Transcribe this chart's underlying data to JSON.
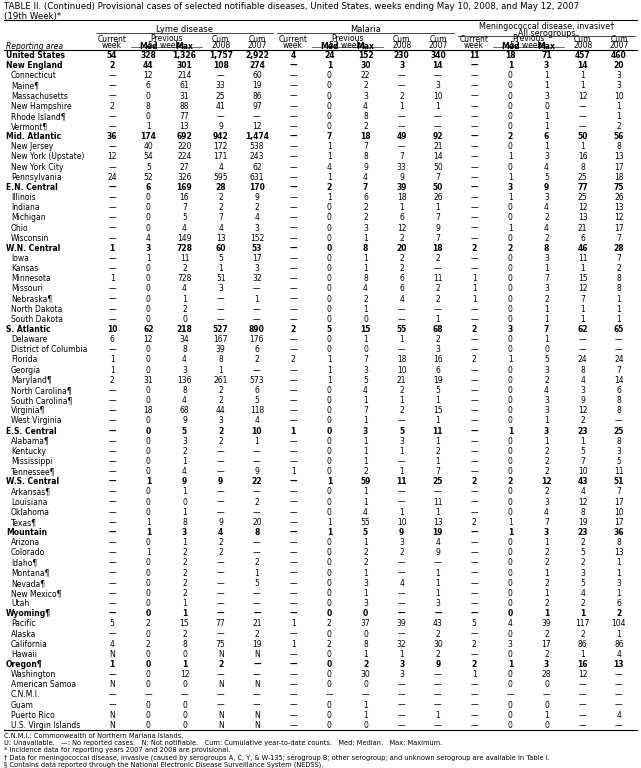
{
  "title_line1": "TABLE II. (Continued) Provisional cases of selected notifiable diseases, United States, weeks ending May 10, 2008, and May 12, 2007",
  "title_line2": "(19th Week)*",
  "rows": [
    [
      "United States",
      "54",
      "328",
      "1,326",
      "1,757",
      "2,922",
      "4",
      "24",
      "152",
      "230",
      "340",
      "11",
      "18",
      "71",
      "457",
      "460"
    ],
    [
      "New England",
      "2",
      "44",
      "301",
      "108",
      "274",
      "—",
      "1",
      "30",
      "3",
      "14",
      "—",
      "1",
      "3",
      "14",
      "20"
    ],
    [
      "Connecticut",
      "—",
      "12",
      "214",
      "—",
      "60",
      "—",
      "0",
      "22",
      "—",
      "—",
      "—",
      "0",
      "1",
      "1",
      "3"
    ],
    [
      "Maine¶",
      "—",
      "6",
      "61",
      "33",
      "19",
      "—",
      "0",
      "2",
      "—",
      "3",
      "—",
      "0",
      "1",
      "1",
      "3"
    ],
    [
      "Massachusetts",
      "—",
      "0",
      "31",
      "25",
      "86",
      "—",
      "0",
      "3",
      "2",
      "10",
      "—",
      "0",
      "3",
      "12",
      "10"
    ],
    [
      "New Hampshire",
      "2",
      "8",
      "88",
      "41",
      "97",
      "—",
      "0",
      "4",
      "1",
      "1",
      "—",
      "0",
      "0",
      "—",
      "1"
    ],
    [
      "Rhode Island¶",
      "—",
      "0",
      "77",
      "—",
      "—",
      "—",
      "0",
      "8",
      "—",
      "—",
      "—",
      "0",
      "1",
      "—",
      "1"
    ],
    [
      "Vermont¶",
      "—",
      "1",
      "13",
      "9",
      "12",
      "—",
      "0",
      "2",
      "—",
      "—",
      "—",
      "0",
      "1",
      "—",
      "2"
    ],
    [
      "Mid. Atlantic",
      "36",
      "174",
      "692",
      "942",
      "1,474",
      "—",
      "7",
      "18",
      "49",
      "92",
      "—",
      "2",
      "6",
      "50",
      "56"
    ],
    [
      "New Jersey",
      "—",
      "40",
      "220",
      "172",
      "538",
      "—",
      "1",
      "7",
      "—",
      "21",
      "—",
      "0",
      "1",
      "1",
      "8"
    ],
    [
      "New York (Upstate)",
      "12",
      "54",
      "224",
      "171",
      "243",
      "—",
      "1",
      "8",
      "7",
      "14",
      "—",
      "1",
      "3",
      "16",
      "13"
    ],
    [
      "New York City",
      "—",
      "5",
      "27",
      "4",
      "62",
      "—",
      "4",
      "9",
      "33",
      "50",
      "—",
      "0",
      "4",
      "8",
      "17"
    ],
    [
      "Pennsylvania",
      "24",
      "52",
      "326",
      "595",
      "631",
      "—",
      "1",
      "4",
      "9",
      "7",
      "—",
      "1",
      "5",
      "25",
      "18"
    ],
    [
      "E.N. Central",
      "—",
      "6",
      "169",
      "28",
      "170",
      "—",
      "2",
      "7",
      "39",
      "50",
      "—",
      "3",
      "9",
      "77",
      "75"
    ],
    [
      "Illinois",
      "—",
      "0",
      "16",
      "2",
      "9",
      "—",
      "1",
      "6",
      "18",
      "26",
      "—",
      "1",
      "3",
      "25",
      "26"
    ],
    [
      "Indiana",
      "—",
      "0",
      "7",
      "2",
      "2",
      "—",
      "0",
      "2",
      "1",
      "1",
      "—",
      "0",
      "4",
      "12",
      "13"
    ],
    [
      "Michigan",
      "—",
      "0",
      "5",
      "7",
      "4",
      "—",
      "0",
      "2",
      "6",
      "7",
      "—",
      "0",
      "2",
      "13",
      "12"
    ],
    [
      "Ohio",
      "—",
      "0",
      "4",
      "4",
      "3",
      "—",
      "0",
      "3",
      "12",
      "9",
      "—",
      "1",
      "4",
      "21",
      "17"
    ],
    [
      "Wisconsin",
      "—",
      "4",
      "149",
      "13",
      "152",
      "—",
      "0",
      "1",
      "2",
      "7",
      "—",
      "0",
      "2",
      "6",
      "7"
    ],
    [
      "W.N. Central",
      "1",
      "3",
      "728",
      "60",
      "53",
      "—",
      "0",
      "8",
      "20",
      "18",
      "2",
      "2",
      "8",
      "46",
      "28"
    ],
    [
      "Iowa",
      "—",
      "1",
      "11",
      "5",
      "17",
      "—",
      "0",
      "1",
      "2",
      "2",
      "—",
      "0",
      "3",
      "11",
      "7"
    ],
    [
      "Kansas",
      "—",
      "0",
      "2",
      "1",
      "3",
      "—",
      "0",
      "1",
      "2",
      "—",
      "—",
      "0",
      "1",
      "1",
      "2"
    ],
    [
      "Minnesota",
      "1",
      "0",
      "728",
      "51",
      "32",
      "—",
      "0",
      "8",
      "6",
      "11",
      "1",
      "0",
      "7",
      "15",
      "8"
    ],
    [
      "Missouri",
      "—",
      "0",
      "4",
      "3",
      "—",
      "—",
      "0",
      "4",
      "6",
      "2",
      "1",
      "0",
      "3",
      "12",
      "8"
    ],
    [
      "Nebraska¶",
      "—",
      "0",
      "1",
      "—",
      "1",
      "—",
      "0",
      "2",
      "4",
      "2",
      "1",
      "0",
      "2",
      "7",
      "1"
    ],
    [
      "North Dakota",
      "—",
      "0",
      "2",
      "—",
      "—",
      "—",
      "0",
      "1",
      "—",
      "—",
      "—",
      "0",
      "1",
      "1",
      "1"
    ],
    [
      "South Dakota",
      "—",
      "0",
      "0",
      "—",
      "—",
      "—",
      "0",
      "0",
      "—",
      "1",
      "—",
      "0",
      "1",
      "1",
      "1"
    ],
    [
      "S. Atlantic",
      "10",
      "62",
      "218",
      "527",
      "890",
      "2",
      "5",
      "15",
      "55",
      "68",
      "2",
      "3",
      "7",
      "62",
      "65"
    ],
    [
      "Delaware",
      "6",
      "12",
      "34",
      "167",
      "176",
      "—",
      "0",
      "1",
      "1",
      "2",
      "—",
      "0",
      "1",
      "—",
      "—"
    ],
    [
      "District of Columbia",
      "—",
      "0",
      "8",
      "39",
      "6",
      "—",
      "0",
      "0",
      "—",
      "3",
      "—",
      "0",
      "0",
      "—",
      "—"
    ],
    [
      "Florida",
      "1",
      "0",
      "4",
      "8",
      "2",
      "2",
      "1",
      "7",
      "18",
      "16",
      "2",
      "1",
      "5",
      "24",
      "24"
    ],
    [
      "Georgia",
      "1",
      "0",
      "3",
      "1",
      "—",
      "—",
      "1",
      "3",
      "10",
      "6",
      "—",
      "0",
      "3",
      "8",
      "7"
    ],
    [
      "Maryland¶",
      "2",
      "31",
      "136",
      "261",
      "573",
      "—",
      "1",
      "5",
      "21",
      "19",
      "—",
      "0",
      "2",
      "4",
      "14"
    ],
    [
      "North Carolina¶",
      "—",
      "0",
      "8",
      "2",
      "6",
      "—",
      "0",
      "4",
      "2",
      "5",
      "—",
      "0",
      "4",
      "3",
      "6"
    ],
    [
      "South Carolina¶",
      "—",
      "0",
      "4",
      "2",
      "5",
      "—",
      "0",
      "1",
      "1",
      "1",
      "—",
      "0",
      "3",
      "9",
      "8"
    ],
    [
      "Virginia¶",
      "—",
      "18",
      "68",
      "44",
      "118",
      "—",
      "0",
      "7",
      "2",
      "15",
      "—",
      "0",
      "3",
      "12",
      "8"
    ],
    [
      "West Virginia",
      "—",
      "0",
      "9",
      "3",
      "4",
      "—",
      "0",
      "1",
      "—",
      "1",
      "—",
      "0",
      "1",
      "2",
      "—"
    ],
    [
      "E.S. Central",
      "—",
      "0",
      "5",
      "2",
      "10",
      "1",
      "0",
      "3",
      "5",
      "11",
      "—",
      "1",
      "3",
      "23",
      "25"
    ],
    [
      "Alabama¶",
      "—",
      "0",
      "3",
      "2",
      "1",
      "—",
      "0",
      "1",
      "3",
      "1",
      "—",
      "0",
      "1",
      "1",
      "8"
    ],
    [
      "Kentucky",
      "—",
      "0",
      "2",
      "—",
      "—",
      "—",
      "0",
      "1",
      "1",
      "2",
      "—",
      "0",
      "2",
      "5",
      "3"
    ],
    [
      "Mississippi",
      "—",
      "0",
      "1",
      "—",
      "—",
      "—",
      "0",
      "1",
      "—",
      "1",
      "—",
      "0",
      "2",
      "7",
      "5"
    ],
    [
      "Tennessee¶",
      "—",
      "0",
      "4",
      "—",
      "9",
      "1",
      "0",
      "2",
      "1",
      "7",
      "—",
      "0",
      "2",
      "10",
      "11"
    ],
    [
      "W.S. Central",
      "—",
      "1",
      "9",
      "9",
      "22",
      "—",
      "1",
      "59",
      "11",
      "25",
      "2",
      "2",
      "12",
      "43",
      "51"
    ],
    [
      "Arkansas¶",
      "—",
      "0",
      "1",
      "—",
      "—",
      "—",
      "0",
      "1",
      "—",
      "—",
      "—",
      "0",
      "2",
      "4",
      "7"
    ],
    [
      "Louisiana",
      "—",
      "0",
      "0",
      "—",
      "2",
      "—",
      "0",
      "1",
      "—",
      "11",
      "—",
      "0",
      "3",
      "12",
      "17"
    ],
    [
      "Oklahoma",
      "—",
      "0",
      "1",
      "—",
      "—",
      "—",
      "0",
      "4",
      "1",
      "1",
      "—",
      "0",
      "4",
      "8",
      "10"
    ],
    [
      "Texas¶",
      "—",
      "1",
      "8",
      "9",
      "20",
      "—",
      "1",
      "55",
      "10",
      "13",
      "2",
      "1",
      "7",
      "19",
      "17"
    ],
    [
      "Mountain",
      "—",
      "1",
      "3",
      "4",
      "8",
      "—",
      "1",
      "5",
      "9",
      "19",
      "—",
      "1",
      "3",
      "23",
      "36"
    ],
    [
      "Arizona",
      "—",
      "0",
      "1",
      "2",
      "—",
      "—",
      "0",
      "1",
      "3",
      "4",
      "—",
      "0",
      "1",
      "2",
      "8"
    ],
    [
      "Colorado",
      "—",
      "1",
      "2",
      "2",
      "—",
      "—",
      "0",
      "2",
      "2",
      "9",
      "—",
      "0",
      "2",
      "5",
      "13"
    ],
    [
      "Idaho¶",
      "—",
      "0",
      "2",
      "—",
      "2",
      "—",
      "0",
      "2",
      "—",
      "—",
      "—",
      "0",
      "2",
      "2",
      "1"
    ],
    [
      "Montana¶",
      "—",
      "0",
      "2",
      "—",
      "1",
      "—",
      "0",
      "1",
      "—",
      "1",
      "—",
      "0",
      "1",
      "3",
      "1"
    ],
    [
      "Nevada¶",
      "—",
      "0",
      "2",
      "—",
      "5",
      "—",
      "0",
      "3",
      "4",
      "1",
      "—",
      "0",
      "2",
      "5",
      "3"
    ],
    [
      "New Mexico¶",
      "—",
      "0",
      "2",
      "—",
      "—",
      "—",
      "0",
      "1",
      "—",
      "1",
      "—",
      "0",
      "1",
      "4",
      "1"
    ],
    [
      "Utah",
      "—",
      "0",
      "1",
      "—",
      "—",
      "—",
      "0",
      "3",
      "—",
      "3",
      "—",
      "0",
      "2",
      "2",
      "6"
    ],
    [
      "Wyoming¶",
      "—",
      "0",
      "1",
      "—",
      "—",
      "—",
      "0",
      "0",
      "—",
      "—",
      "—",
      "0",
      "1",
      "1",
      "2"
    ],
    [
      "Pacific",
      "5",
      "2",
      "15",
      "77",
      "21",
      "1",
      "2",
      "37",
      "39",
      "43",
      "5",
      "4",
      "39",
      "117",
      "104"
    ],
    [
      "Alaska",
      "—",
      "0",
      "2",
      "—",
      "2",
      "—",
      "0",
      "0",
      "—",
      "2",
      "—",
      "0",
      "2",
      "2",
      "1"
    ],
    [
      "California",
      "4",
      "2",
      "8",
      "75",
      "19",
      "1",
      "2",
      "8",
      "32",
      "30",
      "2",
      "3",
      "17",
      "86",
      "86"
    ],
    [
      "Hawaii",
      "N",
      "0",
      "0",
      "N",
      "N",
      "—",
      "0",
      "1",
      "1",
      "2",
      "—",
      "0",
      "2",
      "1",
      "4"
    ],
    [
      "Oregon¶",
      "1",
      "0",
      "1",
      "2",
      "—",
      "—",
      "0",
      "2",
      "3",
      "9",
      "2",
      "1",
      "3",
      "16",
      "13"
    ],
    [
      "Washington",
      "—",
      "0",
      "12",
      "—",
      "—",
      "—",
      "0",
      "30",
      "3",
      "—",
      "1",
      "0",
      "28",
      "12",
      "—"
    ],
    [
      "American Samoa",
      "N",
      "0",
      "0",
      "N",
      "N",
      "—",
      "0",
      "0",
      "—",
      "—",
      "—",
      "0",
      "0",
      "—",
      "—"
    ],
    [
      "C.N.M.I.",
      "—",
      "—",
      "—",
      "—",
      "—",
      "—",
      "—",
      "—",
      "—",
      "—",
      "—",
      "—",
      "—",
      "—",
      "—"
    ],
    [
      "Guam",
      "—",
      "0",
      "0",
      "—",
      "—",
      "—",
      "0",
      "1",
      "—",
      "—",
      "—",
      "0",
      "0",
      "—",
      "—"
    ],
    [
      "Puerto Rico",
      "N",
      "0",
      "0",
      "N",
      "N",
      "—",
      "0",
      "1",
      "—",
      "1",
      "—",
      "0",
      "1",
      "—",
      "4"
    ],
    [
      "U.S. Virgin Islands",
      "N",
      "0",
      "0",
      "N",
      "N",
      "—",
      "0",
      "0",
      "—",
      "—",
      "—",
      "0",
      "0",
      "—",
      "—"
    ]
  ],
  "bold_rows": [
    0,
    1,
    8,
    13,
    19,
    27,
    37,
    42,
    47,
    55,
    60
  ],
  "footnotes": [
    "C.N.M.I.: Commonwealth of Northern Mariana Islands.",
    "U: Unavailable.   —: No reported cases.   N: Not notifiable.   Cum: Cumulative year-to-date counts.   Med: Median.   Max: Maximum.",
    "* Incidence data for reporting years 2007 and 2008 are provisional.",
    "† Data for meningococcal disease, invasive (caused by serogroups A, C, Y, & W-135; serogroup B; other serogroup; and unknown serogroup are available in Table I.",
    "§ Contains data reported through the National Electronic Disease Surveillance System (NEDSS)."
  ]
}
